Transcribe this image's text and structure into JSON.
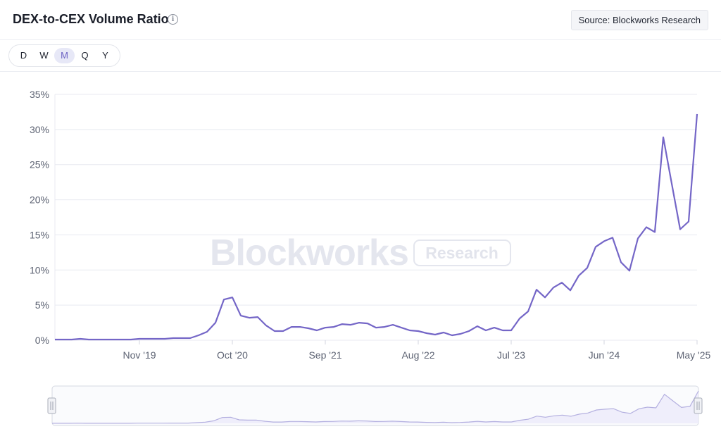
{
  "header": {
    "title": "DEX-to-CEX Volume Ratio",
    "info_icon": "info-circle-icon",
    "source": "Source: Blockworks Research"
  },
  "toolbar": {
    "ranges": [
      "D",
      "W",
      "M",
      "Q",
      "Y"
    ],
    "active_range": "M"
  },
  "watermark": {
    "brand": "Blockworks",
    "badge": "Research"
  },
  "colors": {
    "line": "#7466c7",
    "grid": "#e8eaf1",
    "axis_text": "#5d6373",
    "navigator_line": "#b4b0e0"
  },
  "chart_data": {
    "type": "line",
    "x_start": "2019-01",
    "x_interval": "month",
    "x_tick_labels": [
      "Nov '19",
      "Oct '20",
      "Sep '21",
      "Aug '22",
      "Jul '23",
      "Jun '24",
      "May '25"
    ],
    "y_tick_labels": [
      "0%",
      "5%",
      "10%",
      "15%",
      "20%",
      "25%",
      "30%",
      "35%"
    ],
    "ylim": [
      0,
      35
    ],
    "y_unit": "%",
    "grid": true,
    "navigator": true,
    "series": [
      {
        "values": [
          0.1,
          0.1,
          0.1,
          0.2,
          0.1,
          0.1,
          0.1,
          0.1,
          0.1,
          0.1,
          0.2,
          0.2,
          0.2,
          0.2,
          0.3,
          0.3,
          0.3,
          0.7,
          1.2,
          2.5,
          5.8,
          6.1,
          3.5,
          3.2,
          3.3,
          2.1,
          1.3,
          1.3,
          1.9,
          1.9,
          1.7,
          1.4,
          1.8,
          1.9,
          2.3,
          2.2,
          2.5,
          2.4,
          1.8,
          1.9,
          2.2,
          1.8,
          1.4,
          1.3,
          1.0,
          0.8,
          1.1,
          0.7,
          0.9,
          1.3,
          2.0,
          1.4,
          1.8,
          1.4,
          1.4,
          3.1,
          4.1,
          7.2,
          6.1,
          7.5,
          8.2,
          7.1,
          9.2,
          10.3,
          13.3,
          14.1,
          14.6,
          11.1,
          9.9,
          14.5,
          16.1,
          15.4,
          28.9,
          22.3,
          15.8,
          16.9,
          32.2
        ]
      }
    ]
  }
}
